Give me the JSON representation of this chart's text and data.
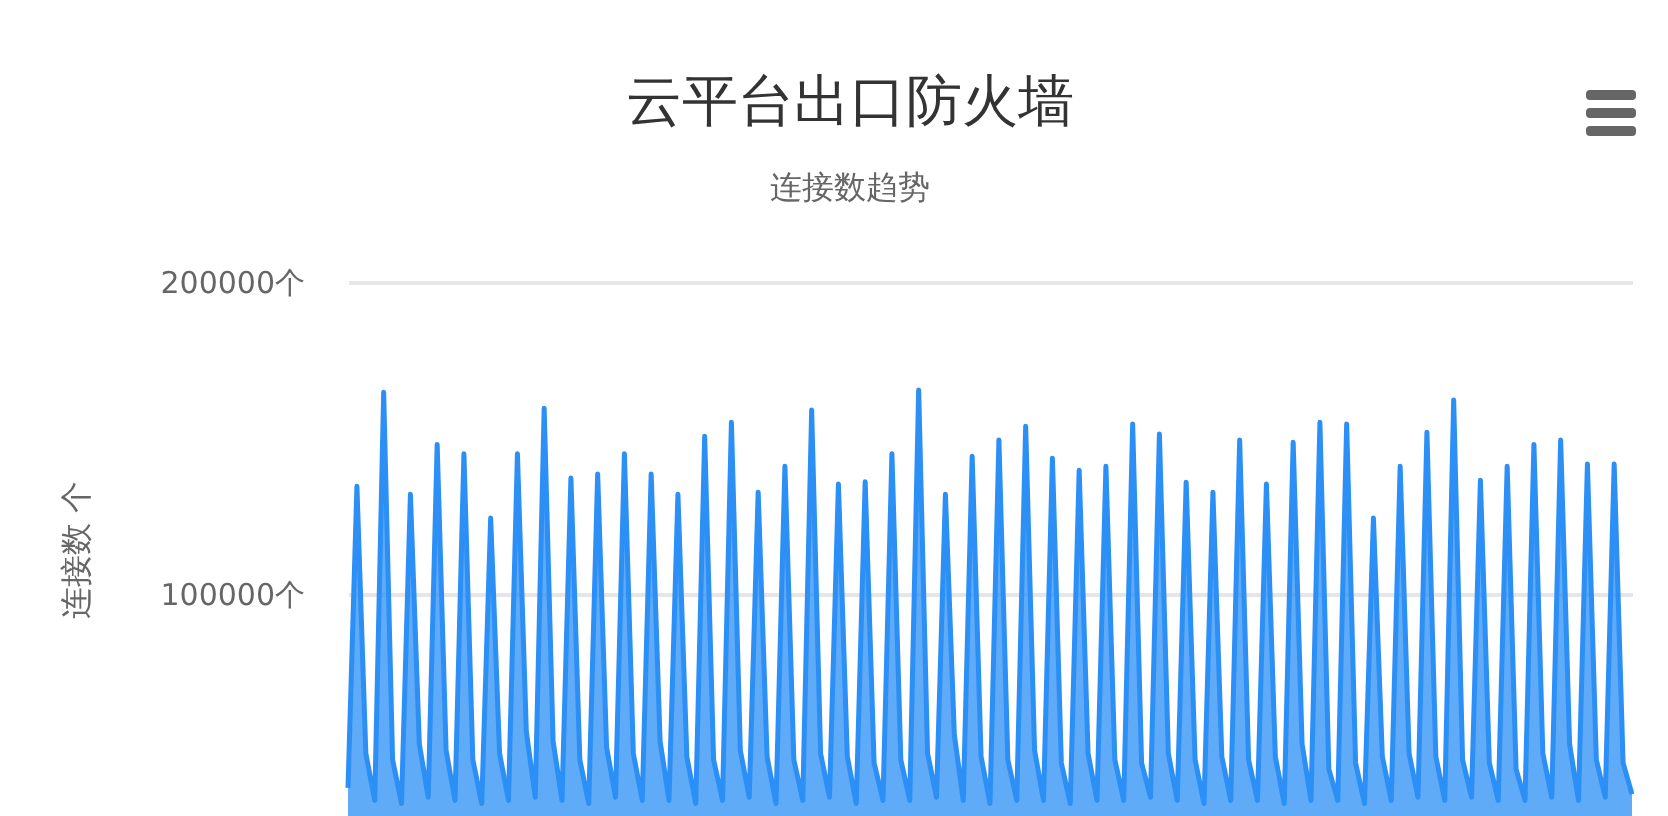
{
  "chart_data": {
    "type": "area",
    "title": "云平台出口防火墙",
    "subtitle": "连接数趋势",
    "ylabel": "连接数 个",
    "categories": [
      null,
      null,
      null,
      null,
      null,
      null,
      null,
      null,
      null,
      null,
      null,
      null,
      null,
      null,
      null,
      null,
      null,
      null,
      null,
      null,
      null,
      null,
      null,
      null,
      null,
      null,
      null,
      null,
      null,
      null,
      null,
      null,
      null,
      null,
      null,
      null,
      null,
      null,
      null,
      null,
      null,
      null,
      null,
      null,
      null,
      null,
      null,
      null,
      null,
      null,
      null,
      null,
      null,
      null,
      null,
      null,
      null,
      null,
      null,
      null,
      null,
      null,
      null,
      null,
      null,
      null,
      null,
      null,
      null,
      null,
      null,
      null,
      null,
      null,
      null,
      null,
      null,
      null,
      null,
      null,
      null,
      null,
      null,
      null,
      null,
      null,
      null,
      null,
      null,
      null,
      null,
      null,
      null,
      null,
      null,
      null,
      null,
      null,
      null,
      null,
      null,
      null,
      null,
      null,
      null,
      null,
      null,
      null,
      null,
      null,
      null,
      null,
      null,
      null,
      null,
      null,
      null,
      null,
      null,
      null,
      null,
      null,
      null,
      null,
      null,
      null,
      null,
      null,
      null,
      null,
      null,
      null,
      null,
      null,
      null,
      null,
      null,
      null,
      null,
      null,
      null,
      null,
      null,
      null,
      null
    ],
    "series": [
      {
        "color": "#2b8ff5",
        "values": [
          38000,
          134600,
          49000,
          34000,
          164700,
          47000,
          33000,
          132000,
          52000,
          35000,
          148000,
          50000,
          34000,
          145000,
          47000,
          33000,
          124400,
          49000,
          34000,
          145000,
          56000,
          35000,
          159600,
          53000,
          34000,
          137200,
          47000,
          33000,
          138500,
          51000,
          35000,
          145000,
          49000,
          34000,
          138500,
          53000,
          34000,
          132000,
          48000,
          33000,
          150600,
          47000,
          34000,
          155100,
          50000,
          35000,
          132700,
          48000,
          33000,
          141000,
          47000,
          34000,
          159000,
          49000,
          35000,
          135300,
          48000,
          33000,
          136000,
          46000,
          34000,
          145000,
          47000,
          34000,
          165400,
          49000,
          35000,
          132000,
          55000,
          34000,
          144200,
          48000,
          33000,
          149400,
          47000,
          34000,
          153800,
          50000,
          34000,
          143600,
          46000,
          33000,
          139700,
          49000,
          34000,
          141000,
          47000,
          34000,
          154500,
          46000,
          35000,
          151300,
          49000,
          34000,
          135900,
          47000,
          33000,
          132700,
          48000,
          34000,
          149400,
          47000,
          34000,
          135300,
          48000,
          33000,
          148700,
          52000,
          34000,
          155100,
          44000,
          34000,
          154500,
          46000,
          33000,
          124400,
          48000,
          34000,
          141000,
          49000,
          35000,
          151900,
          48000,
          34000,
          162200,
          47000,
          35000,
          136500,
          46000,
          34000,
          141000,
          44000,
          34000,
          148000,
          49000,
          35000,
          149400,
          52000,
          34000,
          141700,
          47000,
          35000,
          141700,
          46000,
          36000
        ]
      }
    ],
    "ylim": [
      29000,
      200000
    ],
    "yticks": [
      {
        "value": 100000,
        "label": "100000个"
      },
      {
        "value": 200000,
        "label": "200000个"
      }
    ],
    "grid": "y",
    "tick_labels": "y"
  }
}
